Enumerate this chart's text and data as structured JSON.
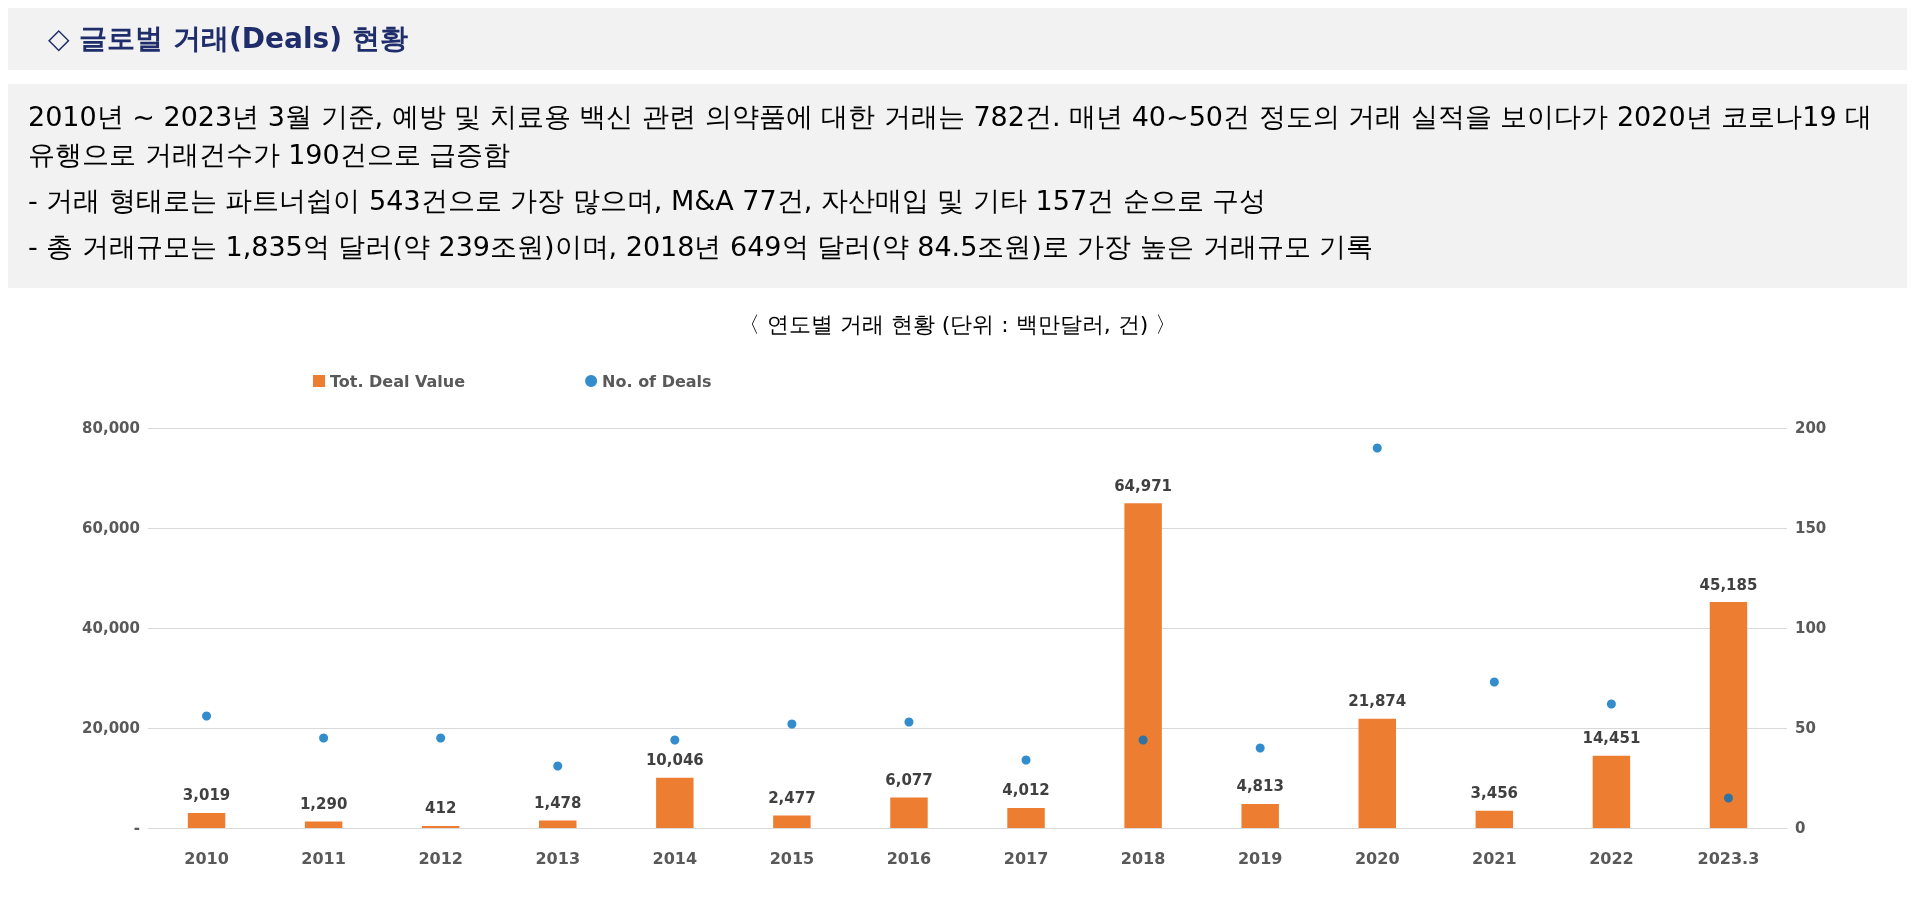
{
  "chart_data": {
    "type": "bar",
    "title": "◇ 글로벌 거래(Deals) 현황",
    "annotations": [
      "2010년 ~ 2023년 3월 기준, 예방 및 치료용 백신 관련 의약품에 대한 거래는 782건. 매년 40~50건 정도의 거래 실적을 보이다가 2020년 코로나19 대유행으로 거래건수가 190건으로 급증함",
      "-   거래 형태로는 파트너쉽이 543건으로 가장 많으며, M&A 77건, 자산매입 및 기타 157건 순으로 구성",
      "-   총 거래규모는 1,835억 달러(약 239조원)이며, 2018년 649억 달러(약 84.5조원)로 가장 높은 거래규모 기록"
    ],
    "subtitle": "〈 연도별 거래 현황 (단위 : 백만달러, 건) 〉",
    "categories": [
      "2010",
      "2011",
      "2012",
      "2013",
      "2014",
      "2015",
      "2016",
      "2017",
      "2018",
      "2019",
      "2020",
      "2021",
      "2022",
      "2023.3"
    ],
    "series": [
      {
        "name": "Tot. Deal Value",
        "color": "#ed7d31",
        "values": [
          3019,
          1290,
          412,
          1478,
          10046,
          2477,
          6077,
          4012,
          64971,
          4813,
          21874,
          3456,
          14451,
          45185
        ],
        "value_labels": [
          "3,019",
          "1,290",
          "412",
          "1,478",
          "10,046",
          "2,477",
          "6,077",
          "4,012",
          "64,971",
          "4,813",
          "21,874",
          "3,456",
          "14,451",
          "45,185"
        ]
      },
      {
        "name": "No. of Deals",
        "type": "scatter",
        "axis": "y2",
        "color": "#0070c0",
        "marker": "circle",
        "values": [
          56,
          45,
          45,
          31,
          44,
          52,
          53,
          34,
          44,
          40,
          190,
          73,
          62,
          15
        ]
      }
    ],
    "ylim": [
      0,
      80000
    ],
    "yticks": [
      {
        "value": 0,
        "label": "-"
      },
      {
        "value": 20000,
        "label": "20,000"
      },
      {
        "value": 40000,
        "label": "40,000"
      },
      {
        "value": 60000,
        "label": "60,000"
      },
      {
        "value": 80000,
        "label": "80,000"
      }
    ],
    "y2lim": [
      0,
      200
    ],
    "y2ticks": [
      0,
      50,
      100,
      150,
      200
    ],
    "grid": "y",
    "legend": "top left"
  }
}
